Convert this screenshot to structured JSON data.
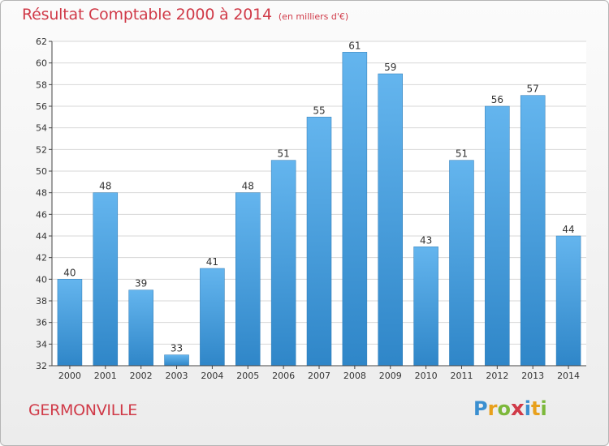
{
  "title": "Résultat Comptable 2000 à 2014",
  "unit": "(en milliers d'€)",
  "commune": "GERMONVILLE",
  "logo": {
    "text": "Proxiti",
    "letters": [
      {
        "ch": "P",
        "color": "#3a8fd0"
      },
      {
        "ch": "r",
        "color": "#e8a01c"
      },
      {
        "ch": "o",
        "color": "#7cb83a"
      },
      {
        "ch": "x",
        "color": "#d03a48"
      },
      {
        "ch": "i",
        "color": "#3a8fd0"
      },
      {
        "ch": "t",
        "color": "#e8a01c"
      },
      {
        "ch": "i",
        "color": "#7cb83a"
      }
    ]
  },
  "colors": {
    "title": "#d03a48",
    "bar_light": "#64b5ee",
    "bar_dark": "#2f86c8",
    "grid": "#d7d7d7",
    "axis": "#444444"
  },
  "chart_data": {
    "type": "bar",
    "title": "Résultat Comptable 2000 à 2014",
    "subtitle": "(en milliers d'€)",
    "categories": [
      "2000",
      "2001",
      "2002",
      "2003",
      "2004",
      "2005",
      "2006",
      "2007",
      "2008",
      "2009",
      "2010",
      "2011",
      "2012",
      "2013",
      "2014"
    ],
    "values": [
      40,
      48,
      39,
      33,
      41,
      48,
      51,
      55,
      61,
      59,
      43,
      51,
      56,
      57,
      44
    ],
    "ylim": [
      32,
      62
    ],
    "yticks": [
      32,
      34,
      36,
      38,
      40,
      42,
      44,
      46,
      48,
      50,
      52,
      54,
      56,
      58,
      60,
      62
    ],
    "grid": true,
    "xlabel": "",
    "ylabel": ""
  }
}
